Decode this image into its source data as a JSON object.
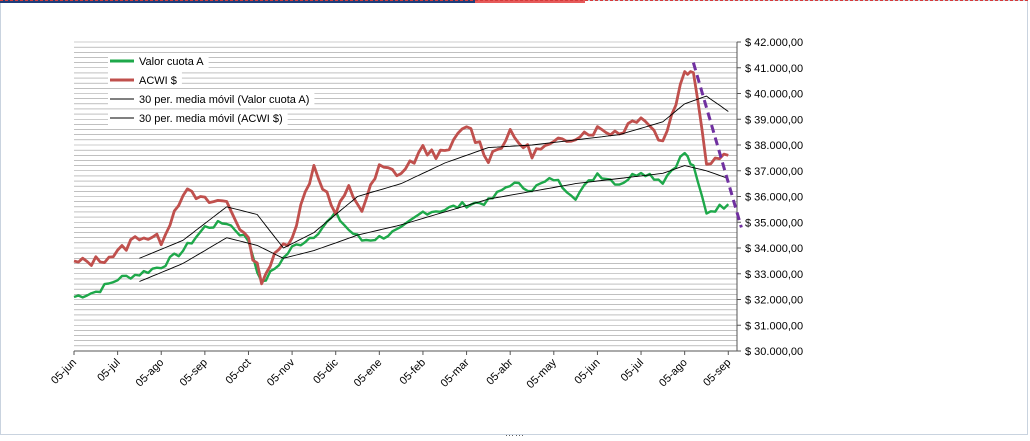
{
  "chart_data": {
    "type": "line",
    "x_labels": [
      "05-jun",
      "05-jul",
      "05-ago",
      "05-sep",
      "05-oct",
      "05-nov",
      "05-dic",
      "05-ene",
      "05-feb",
      "05-mar",
      "05-abr",
      "05-may",
      "05-jun",
      "05-jul",
      "05-ago",
      "05-sep"
    ],
    "y_ticks": [
      "$ 30.000,00",
      "$ 31.000,00",
      "$ 32.000,00",
      "$ 33.000,00",
      "$ 34.000,00",
      "$ 35.000,00",
      "$ 36.000,00",
      "$ 37.000,00",
      "$ 38.000,00",
      "$ 39.000,00",
      "$ 40.000,00",
      "$ 41.000,00",
      "$ 42.000,00"
    ],
    "ylim": [
      30000,
      42000
    ],
    "grid": "horizontal",
    "legend_position": "top-left",
    "series": [
      {
        "name": "Valor cuota A",
        "color": "#1ea84a",
        "values": [
          [
            0,
            32100
          ],
          [
            0.5,
            32300
          ],
          [
            1,
            32800
          ],
          [
            1.5,
            33000
          ],
          [
            2,
            33300
          ],
          [
            2.5,
            33900
          ],
          [
            3,
            34800
          ],
          [
            3.5,
            35000
          ],
          [
            4,
            34300
          ],
          [
            4.3,
            32600
          ],
          [
            4.7,
            33400
          ],
          [
            5,
            34000
          ],
          [
            5.5,
            34500
          ],
          [
            6,
            35300
          ],
          [
            6.3,
            34700
          ],
          [
            6.6,
            34300
          ],
          [
            7,
            34400
          ],
          [
            7.5,
            34700
          ],
          [
            8,
            35400
          ],
          [
            8.5,
            35500
          ],
          [
            9,
            35700
          ],
          [
            9.5,
            35800
          ],
          [
            10,
            36500
          ],
          [
            10.5,
            36300
          ],
          [
            11,
            36700
          ],
          [
            11.5,
            36000
          ],
          [
            12,
            36900
          ],
          [
            12.5,
            36500
          ],
          [
            13,
            37000
          ],
          [
            13.5,
            36600
          ],
          [
            14,
            37700
          ],
          [
            14.2,
            37100
          ],
          [
            14.5,
            35400
          ],
          [
            15,
            35700
          ]
        ]
      },
      {
        "name": "ACWI $",
        "color": "#c0504d",
        "values": [
          [
            0,
            33400
          ],
          [
            0.5,
            33500
          ],
          [
            1,
            33800
          ],
          [
            1.5,
            34500
          ],
          [
            2,
            34300
          ],
          [
            2.5,
            36200
          ],
          [
            3,
            35800
          ],
          [
            3.5,
            35800
          ],
          [
            4,
            34200
          ],
          [
            4.3,
            32800
          ],
          [
            4.7,
            33900
          ],
          [
            5,
            34500
          ],
          [
            5.5,
            37200
          ],
          [
            6,
            35300
          ],
          [
            6.3,
            36300
          ],
          [
            6.6,
            35500
          ],
          [
            7,
            37100
          ],
          [
            7.5,
            36900
          ],
          [
            8,
            37800
          ],
          [
            8.5,
            37600
          ],
          [
            9,
            38800
          ],
          [
            9.5,
            37500
          ],
          [
            10,
            38400
          ],
          [
            10.5,
            37700
          ],
          [
            11,
            38000
          ],
          [
            11.5,
            38400
          ],
          [
            12,
            38600
          ],
          [
            12.5,
            38500
          ],
          [
            13,
            39200
          ],
          [
            13.5,
            38100
          ],
          [
            14,
            40800
          ],
          [
            14.2,
            41000
          ],
          [
            14.5,
            37400
          ],
          [
            15,
            37600
          ]
        ]
      },
      {
        "name": "30 per. media móvil (Valor cuota A)",
        "color": "#000000",
        "values": [
          [
            1.5,
            32700
          ],
          [
            2.5,
            33400
          ],
          [
            3.5,
            34400
          ],
          [
            4.2,
            34100
          ],
          [
            4.8,
            33600
          ],
          [
            5.5,
            33900
          ],
          [
            6.5,
            34500
          ],
          [
            7.5,
            34900
          ],
          [
            8.5,
            35400
          ],
          [
            9.5,
            35900
          ],
          [
            10.5,
            36200
          ],
          [
            11.5,
            36500
          ],
          [
            12.5,
            36700
          ],
          [
            13.5,
            36900
          ],
          [
            14,
            37200
          ],
          [
            14.5,
            37000
          ],
          [
            15,
            36700
          ]
        ]
      },
      {
        "name": "30 per. media móvil (ACWI $)",
        "color": "#000000",
        "values": [
          [
            1.5,
            33600
          ],
          [
            2.5,
            34300
          ],
          [
            3.5,
            35600
          ],
          [
            4.2,
            35300
          ],
          [
            4.8,
            34000
          ],
          [
            5.5,
            34600
          ],
          [
            6.5,
            36000
          ],
          [
            7.5,
            36500
          ],
          [
            8.5,
            37300
          ],
          [
            9.5,
            37900
          ],
          [
            10.5,
            38000
          ],
          [
            11.5,
            38200
          ],
          [
            12.5,
            38400
          ],
          [
            13.5,
            38900
          ],
          [
            14,
            39600
          ],
          [
            14.5,
            39900
          ],
          [
            15,
            39300
          ]
        ]
      }
    ],
    "annotation": {
      "type": "dashed-trend-line",
      "color": "#7030a0",
      "from": [
        14.2,
        41200
      ],
      "to": [
        15.3,
        34800
      ]
    }
  }
}
